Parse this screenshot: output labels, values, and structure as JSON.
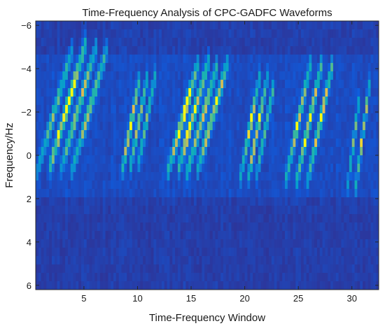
{
  "chart_data": {
    "type": "heatmap",
    "title": "Time-Frequency Analysis of CPC-GADFC Waveforms",
    "xlabel": "Time-Frequency Window",
    "ylabel": "Frequency/Hz",
    "xlim": [
      0.5,
      32.5
    ],
    "ylim": [
      6.2,
      -6.2
    ],
    "y_reversed": true,
    "x_ticks": [
      5,
      10,
      15,
      20,
      25,
      30
    ],
    "x_tick_labels": [
      "5",
      "10",
      "15",
      "20",
      "25",
      "30"
    ],
    "y_ticks": [
      -6,
      -4,
      -2,
      0,
      2,
      4,
      6
    ],
    "y_tick_labels": [
      "−6",
      "−4",
      "−2",
      "0",
      "2",
      "4",
      "6"
    ],
    "colormap": "parula",
    "colors": {
      "low": "#3a1fb0",
      "mid": "#1f9fd6",
      "high": "#f6df1e"
    },
    "freq_bins": 32,
    "chirp_groups": [
      {
        "x_start": 0.6,
        "x_end": 8.4,
        "f_start": 0.8,
        "f_end": -5.2,
        "lines": 4
      },
      {
        "x_start": 8.6,
        "x_end": 12.4,
        "f_start": 0.6,
        "f_end": -3.8,
        "lines": 3
      },
      {
        "x_start": 12.8,
        "x_end": 19.4,
        "f_start": 0.8,
        "f_end": -4.4,
        "lines": 4
      },
      {
        "x_start": 19.6,
        "x_end": 23.6,
        "f_start": 1.0,
        "f_end": -3.6,
        "lines": 3
      },
      {
        "x_start": 23.8,
        "x_end": 29.4,
        "f_start": 1.2,
        "f_end": -4.6,
        "lines": 3
      },
      {
        "x_start": 29.6,
        "x_end": 32.4,
        "f_start": 1.4,
        "f_end": -3.2,
        "lines": 2
      }
    ]
  }
}
